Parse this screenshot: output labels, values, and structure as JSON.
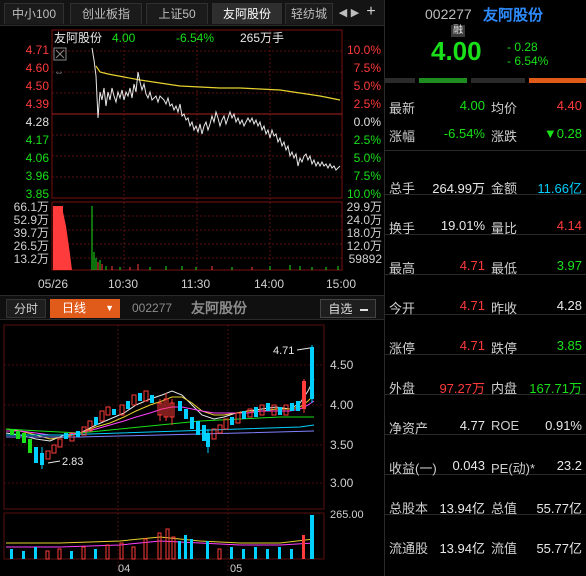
{
  "tabs": [
    {
      "label": "中小100",
      "active": false
    },
    {
      "label": "创业板指",
      "active": false
    },
    {
      "label": "上证50",
      "active": false
    },
    {
      "label": "友阿股份",
      "active": true
    },
    {
      "label": "轻纺城",
      "active": false
    }
  ],
  "tab_controls": {
    "prev": "◀",
    "next": "▶",
    "add": "+"
  },
  "intraday": {
    "stock_name": "友阿股份",
    "price": "4.00",
    "change_pct": "-6.54%",
    "volume": "265万手",
    "price_ticks": [
      "4.71",
      "4.60",
      "4.50",
      "4.39",
      "4.28",
      "4.17",
      "4.06",
      "3.96",
      "3.85"
    ],
    "pct_ticks": [
      "10.0%",
      "7.5%",
      "5.0%",
      "2.5%",
      "0.0%",
      "2.5%",
      "5.0%",
      "7.5%",
      "10.0%"
    ],
    "vol_ticks_left": [
      "66.1万",
      "52.9万",
      "39.7万",
      "26.5万",
      "13.2万"
    ],
    "vol_ticks_right": [
      "29.9万",
      "24.0万",
      "18.0万",
      "12.0万",
      "59892"
    ],
    "time_ticks": [
      "05/26",
      "10:30",
      "11:30",
      "14:00",
      "15:00"
    ]
  },
  "kline_toolbar": {
    "fenshi": "分时",
    "period": "日线",
    "period_arrow": "▼",
    "code": "002277",
    "name": "友阿股份",
    "watchlist": "自选",
    "watchlist_icon": "minus-icon"
  },
  "kline": {
    "price_ticks": [
      "4.50",
      "4.00",
      "3.50",
      "3.00"
    ],
    "high_label": "4.71",
    "low_label": "2.83",
    "vol_tick": "265.00",
    "month_ticks": [
      "04",
      "05"
    ]
  },
  "quote": {
    "code": "002277",
    "name": "友阿股份",
    "badge": "融",
    "price": "4.00",
    "change": "- 0.28",
    "change_pct": "- 6.54%",
    "rows": [
      [
        {
          "label": "最新",
          "value": "4.00",
          "color": "green"
        },
        {
          "label": "均价",
          "value": "4.40",
          "color": "red"
        }
      ],
      [
        {
          "label": "涨幅",
          "value": "-6.54%",
          "color": "green"
        },
        {
          "label": "涨跌",
          "value": "▼0.28",
          "color": "green"
        }
      ],
      [
        {
          "label": "总手",
          "value": "264.99万",
          "color": "white"
        },
        {
          "label": "金额",
          "value": "11.66亿",
          "color": "cyan"
        }
      ],
      [
        {
          "label": "换手",
          "value": "19.01%",
          "color": "white"
        },
        {
          "label": "量比",
          "value": "4.14",
          "color": "red"
        }
      ],
      [
        {
          "label": "最高",
          "value": "4.71",
          "color": "red"
        },
        {
          "label": "最低",
          "value": "3.97",
          "color": "green"
        }
      ],
      [
        {
          "label": "今开",
          "value": "4.71",
          "color": "red"
        },
        {
          "label": "昨收",
          "value": "4.28",
          "color": "white"
        }
      ],
      [
        {
          "label": "涨停",
          "value": "4.71",
          "color": "red"
        },
        {
          "label": "跌停",
          "value": "3.85",
          "color": "green"
        }
      ],
      [
        {
          "label": "外盘",
          "value": "97.27万",
          "color": "red"
        },
        {
          "label": "内盘",
          "value": "167.71万",
          "color": "green"
        }
      ],
      [
        {
          "label": "净资产",
          "value": "4.77",
          "color": "white"
        },
        {
          "label": "ROE",
          "value": "0.91%",
          "color": "white"
        }
      ],
      [
        {
          "label": "收益(一)",
          "value": "0.043",
          "color": "white"
        },
        {
          "label": "PE(动)*",
          "value": "23.2",
          "color": "white"
        }
      ],
      [
        {
          "label": "总股本",
          "value": "13.94亿",
          "color": "white"
        },
        {
          "label": "总值",
          "value": "55.77亿",
          "color": "white"
        }
      ],
      [
        {
          "label": "流通股",
          "value": "13.94亿",
          "color": "white"
        },
        {
          "label": "流值",
          "value": "55.77亿",
          "color": "white"
        }
      ]
    ]
  }
}
